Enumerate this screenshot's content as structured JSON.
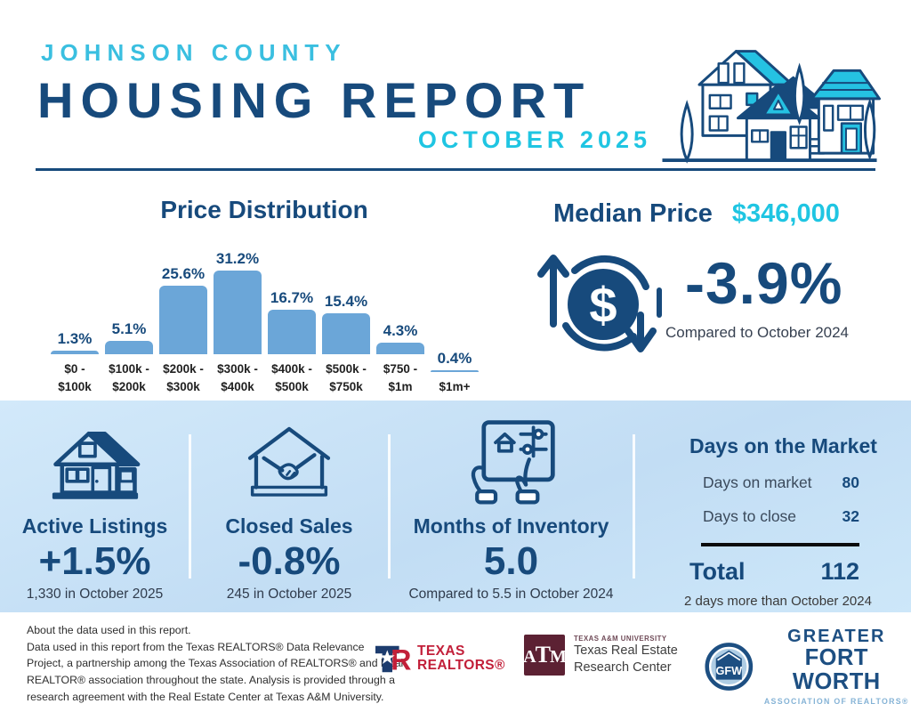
{
  "header": {
    "county": "JOHNSON COUNTY",
    "title": "HOUSING REPORT",
    "month": "OCTOBER 2025"
  },
  "chart_data": {
    "type": "bar",
    "title": "Price Distribution",
    "categories": [
      "$0 -\n$100k",
      "$100k -\n$200k",
      "$200k -\n$300k",
      "$300k -\n$400k",
      "$400k -\n$500k",
      "$500k -\n$750k",
      "$750 -\n$1m",
      "$1m+"
    ],
    "values": [
      1.3,
      5.1,
      25.6,
      31.2,
      16.7,
      15.4,
      4.3,
      0.4
    ],
    "value_suffix": "%",
    "xlabel": "",
    "ylabel": "",
    "ylim": [
      0,
      35
    ],
    "grid": false,
    "legend": "none",
    "bar_color": "#6BA6D8"
  },
  "median": {
    "label": "Median Price",
    "value": "$346,000",
    "change": "-3.9%",
    "compare": "Compared to October 2024"
  },
  "stats": [
    {
      "icon": "house-icon",
      "title": "Active Listings",
      "value": "+1.5%",
      "detail": "1,330 in October 2025"
    },
    {
      "icon": "handshake-house-icon",
      "title": "Closed Sales",
      "value": "-0.8%",
      "detail": "245 in October 2025"
    },
    {
      "icon": "tablet-inventory-icon",
      "title": "Months of Inventory",
      "value": "5.0",
      "detail": "Compared to 5.5 in October 2024"
    }
  ],
  "days_on_market": {
    "title": "Days on the Market",
    "rows": [
      {
        "label": "Days on market",
        "value": "80"
      },
      {
        "label": "Days to close",
        "value": "32"
      }
    ],
    "total_label": "Total",
    "total_value": "112",
    "note": "2 days more than October 2024"
  },
  "footer": {
    "about_lines": [
      "About the data used in this report.",
      "Data used in this report from the Texas REALTORS® Data Relevance",
      "Project, a partnership among the Texas Association of REALTORS® and local",
      "REALTOR® association throughout the state. Analysis is provided through a",
      "research agreement with the Real Estate Center at Texas A&M University."
    ],
    "logos": {
      "texas_realtors": {
        "line1": "TEXAS",
        "line2": "REALTORS®"
      },
      "tamu": {
        "mono": "A–T–M",
        "line1": "TEXAS A&M UNIVERSITY",
        "line2": "Texas Real Estate",
        "line3": "Research Center"
      },
      "gfw": {
        "mono": "GFW",
        "line1": "GREATER",
        "line2": "FORT WORTH",
        "line3": "ASSOCIATION OF REALTORS®"
      }
    }
  },
  "colors": {
    "navy": "#174A7C",
    "cyan": "#1FC5E2",
    "cyan_light": "#3ABFE0",
    "bar": "#6BA6D8",
    "red": "#C21F39",
    "maroon": "#5C2133",
    "gfw_blue": "#85B3D6"
  }
}
